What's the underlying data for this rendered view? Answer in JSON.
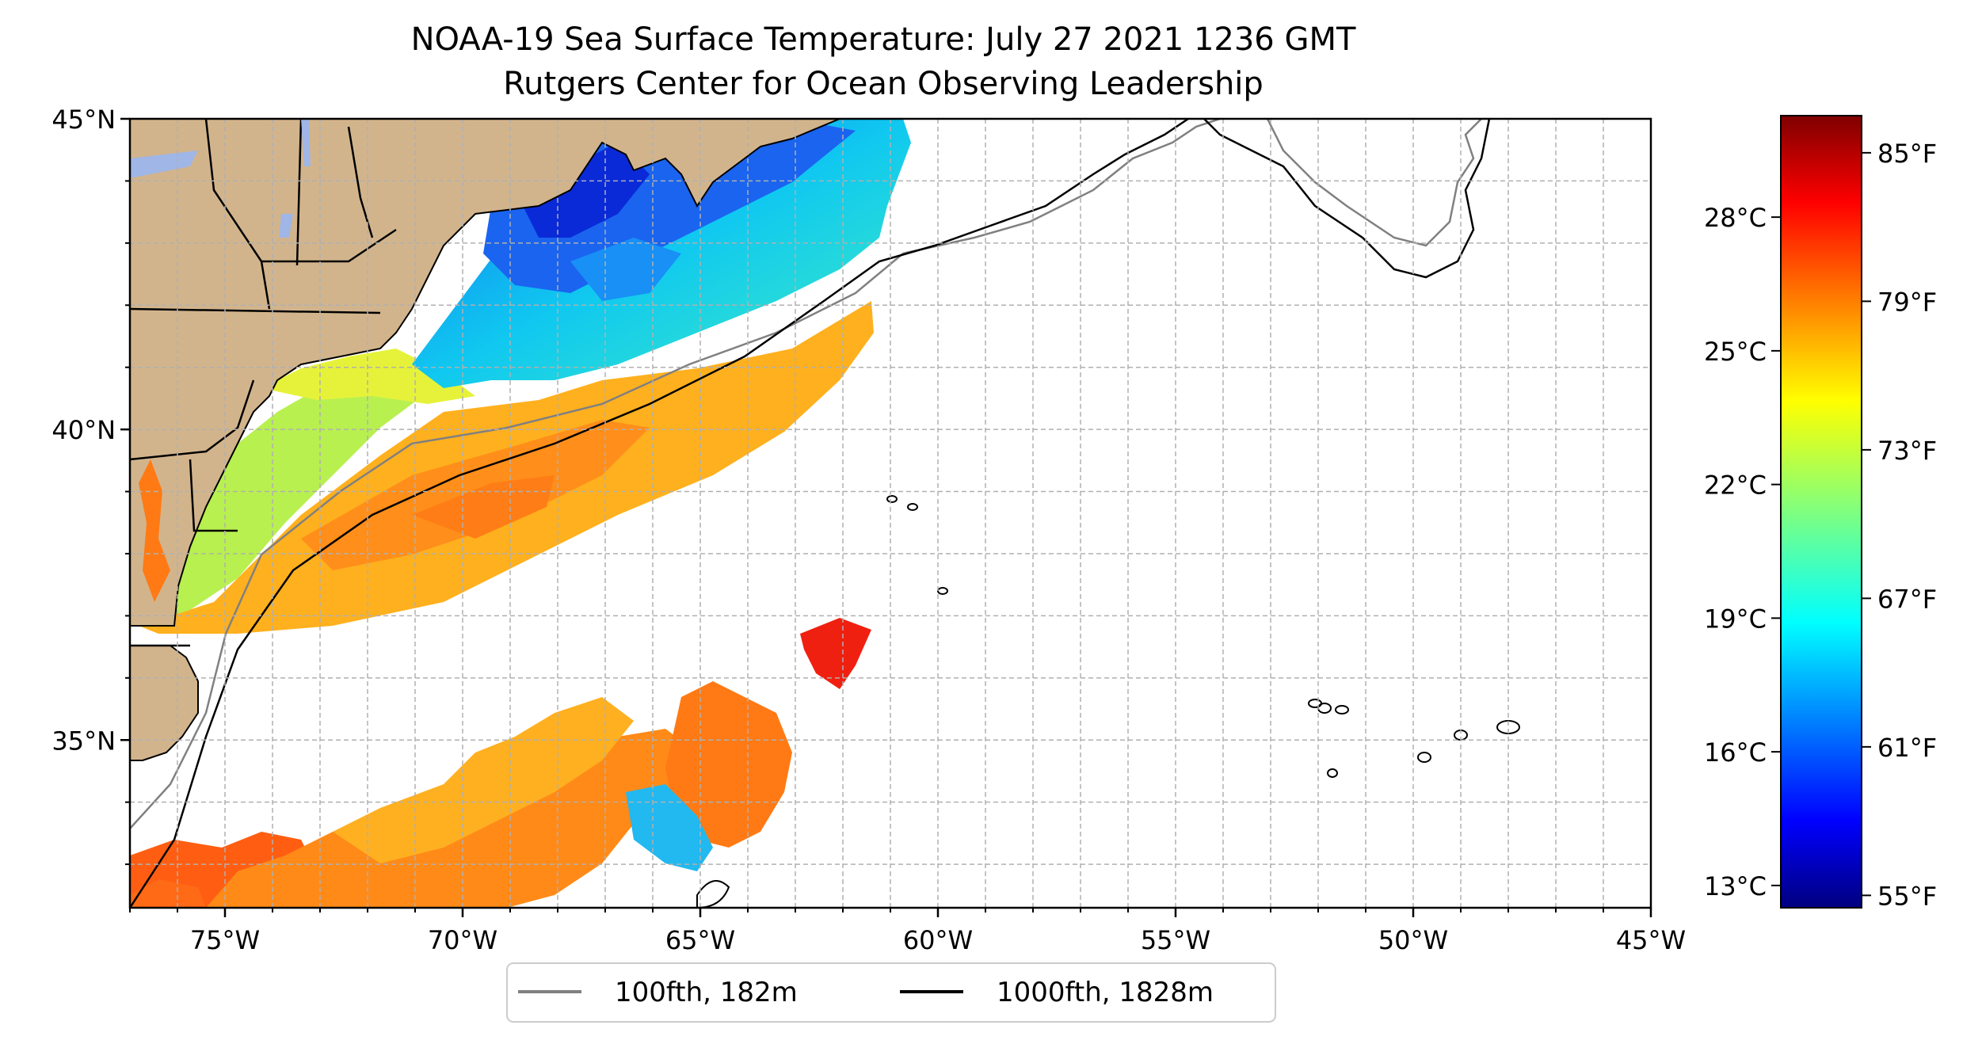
{
  "title": {
    "line1": "NOAA-19 Sea Surface Temperature: July 27 2021 1236 GMT",
    "line2": "Rutgers Center for Ocean Observing Leadership"
  },
  "map": {
    "lon_range": [
      -77,
      -45
    ],
    "lat_range": [
      32.3,
      45
    ],
    "lon_ticks": [
      {
        "value": -75,
        "label": "75°W"
      },
      {
        "value": -70,
        "label": "70°W"
      },
      {
        "value": -65,
        "label": "65°W"
      },
      {
        "value": -60,
        "label": "60°W"
      },
      {
        "value": -55,
        "label": "55°W"
      },
      {
        "value": -50,
        "label": "50°W"
      },
      {
        "value": -45,
        "label": "45°W"
      }
    ],
    "lat_ticks": [
      {
        "value": 35,
        "label": "35°N"
      },
      {
        "value": 40,
        "label": "40°N"
      },
      {
        "value": 45,
        "label": "45°N"
      }
    ],
    "gridlines": true,
    "colors": {
      "land": "#d2b48c",
      "lakes": "#9fb6e6",
      "no_data": "#ffffff",
      "isobath_100fth": "#808080",
      "isobath_1000fth": "#000000"
    }
  },
  "legend": {
    "position": "below-map",
    "items": [
      {
        "label": "100fth, 182m",
        "color": "#808080"
      },
      {
        "label": "1000fth, 1828m",
        "color": "#000000"
      }
    ]
  },
  "colorbar": {
    "colormap": "jet",
    "range_f": [
      54.5,
      86.5
    ],
    "celsius_ticks": [
      {
        "value": 28,
        "label": "28°C"
      },
      {
        "value": 25,
        "label": "25°C"
      },
      {
        "value": 22,
        "label": "22°C"
      },
      {
        "value": 19,
        "label": "19°C"
      },
      {
        "value": 16,
        "label": "16°C"
      },
      {
        "value": 13,
        "label": "13°C"
      }
    ],
    "fahrenheit_ticks": [
      {
        "value": 85,
        "label": "85°F"
      },
      {
        "value": 79,
        "label": "79°F"
      },
      {
        "value": 73,
        "label": "73°F"
      },
      {
        "value": 67,
        "label": "67°F"
      },
      {
        "value": 61,
        "label": "61°F"
      },
      {
        "value": 55,
        "label": "55°F"
      }
    ]
  }
}
